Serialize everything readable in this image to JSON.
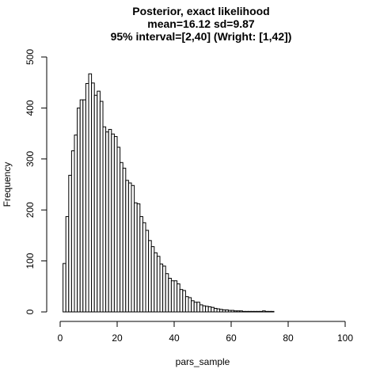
{
  "chart_data": {
    "type": "bar",
    "title": "Posterior, exact likelihood",
    "subtitle_lines": [
      "mean=16.12 sd=9.87",
      "95% interval=[2,40]  (Wright: [1,42])"
    ],
    "xlabel": "pars_sample",
    "ylabel": "Frequency",
    "xlim": [
      0,
      100
    ],
    "ylim": [
      0,
      500
    ],
    "x_ticks": [
      0,
      20,
      40,
      60,
      80,
      100
    ],
    "y_ticks": [
      0,
      100,
      200,
      300,
      400,
      500
    ],
    "bin_width": 1,
    "bin_start": 0,
    "values": [
      0,
      95,
      187,
      268,
      316,
      347,
      400,
      416,
      416,
      448,
      467,
      449,
      425,
      433,
      413,
      363,
      353,
      358,
      349,
      344,
      323,
      293,
      282,
      258,
      253,
      248,
      214,
      212,
      187,
      175,
      160,
      140,
      128,
      116,
      109,
      94,
      90,
      75,
      66,
      61,
      61,
      55,
      44,
      42,
      30,
      28,
      22,
      19,
      19,
      14,
      12,
      11,
      10,
      9,
      7,
      6,
      5,
      4,
      4,
      3,
      3,
      2,
      2,
      2,
      1,
      1,
      1,
      1,
      1,
      1,
      1,
      2,
      1,
      1,
      1,
      0,
      0,
      0,
      0,
      0,
      0,
      0,
      0,
      0,
      0,
      0,
      0,
      0,
      0,
      0,
      0,
      0,
      0,
      0,
      0,
      0,
      0,
      0,
      0,
      0
    ]
  }
}
